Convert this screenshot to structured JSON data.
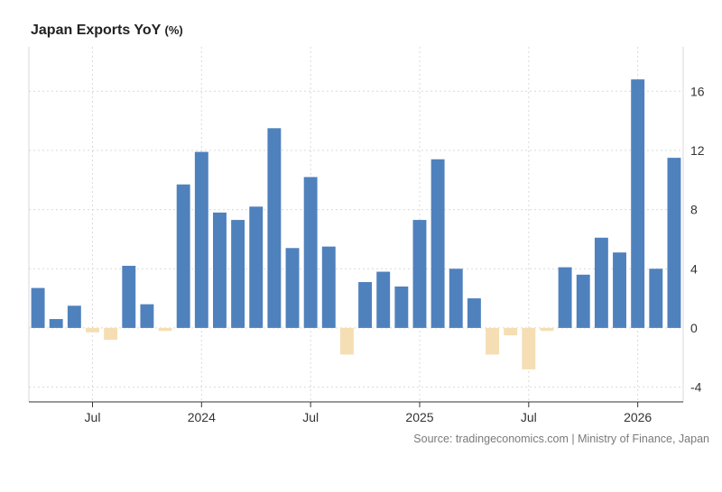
{
  "header": {
    "title": "Japan Exports YoY",
    "unit": "(%)"
  },
  "source": "Source: tradingeconomics.com | Ministry of Finance, Japan",
  "colors": {
    "positive": "#4f81bd",
    "negative": "#f5deb3",
    "grid": "#d9d9d9",
    "axis": "#333333"
  },
  "chart_data": {
    "type": "bar",
    "xlabel": "",
    "ylabel": "",
    "ylim": [
      -5,
      19
    ],
    "yticks": [
      -4,
      0,
      4,
      8,
      12,
      16
    ],
    "grid": true,
    "x_tick_labels": [
      {
        "label": "Jul",
        "category": "2023-07"
      },
      {
        "label": "2024",
        "category": "2024-01"
      },
      {
        "label": "Jul",
        "category": "2024-07"
      },
      {
        "label": "2025",
        "category": "2025-01"
      },
      {
        "label": "Jul",
        "category": "2025-07"
      },
      {
        "label": "2026",
        "category": "2026-01"
      }
    ],
    "categories": [
      "2023-04",
      "2023-05",
      "2023-06",
      "2023-07",
      "2023-08",
      "2023-09",
      "2023-10",
      "2023-11",
      "2023-12",
      "2024-01",
      "2024-02",
      "2024-03",
      "2024-04",
      "2024-05",
      "2024-06",
      "2024-07",
      "2024-08",
      "2024-09",
      "2024-10",
      "2024-11",
      "2024-12",
      "2025-01",
      "2025-02",
      "2025-03",
      "2025-04",
      "2025-05",
      "2025-06",
      "2025-07",
      "2025-08",
      "2025-09",
      "2025-10",
      "2025-11",
      "2025-12",
      "2026-01",
      "2026-02",
      "2026-03"
    ],
    "values": [
      2.7,
      0.6,
      1.5,
      -0.3,
      -0.8,
      4.2,
      1.6,
      -0.2,
      9.7,
      11.9,
      7.8,
      7.3,
      8.2,
      13.5,
      5.4,
      10.2,
      5.5,
      -1.8,
      3.1,
      3.8,
      2.8,
      7.3,
      11.4,
      4.0,
      2.0,
      -1.8,
      -0.5,
      -2.8,
      -0.2,
      4.1,
      3.6,
      6.1,
      5.1,
      16.8,
      4.0,
      11.5
    ]
  }
}
